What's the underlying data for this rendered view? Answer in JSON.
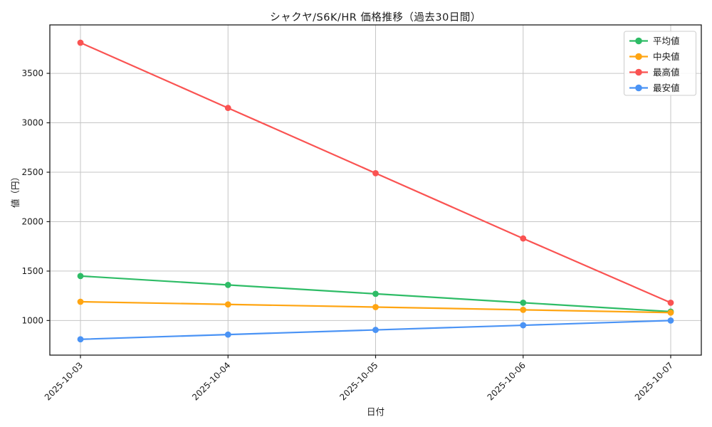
{
  "chart_data": {
    "type": "line",
    "title": "シャクヤ/S6K/HR 価格推移（過去30日間）",
    "xlabel": "日付",
    "ylabel": "値（円）",
    "x": [
      "2025-10-03",
      "2025-10-04",
      "2025-10-05",
      "2025-10-06",
      "2025-10-07"
    ],
    "series": [
      {
        "key": "average",
        "name": "平均値",
        "color": "#2ebc66",
        "values": [
          1450,
          1360,
          1270,
          1180,
          1090
        ]
      },
      {
        "key": "median",
        "name": "中央値",
        "color": "#ffa512",
        "values": [
          1190,
          1163,
          1136,
          1108,
          1080
        ]
      },
      {
        "key": "highest",
        "name": "最高値",
        "color": "#fa5352",
        "values": [
          3810,
          3150,
          2490,
          1830,
          1180
        ]
      },
      {
        "key": "lowest",
        "name": "最安値",
        "color": "#4a93f5",
        "values": [
          810,
          858,
          905,
          952,
          1000
        ]
      }
    ],
    "yticks": [
      1000,
      1500,
      2000,
      2500,
      3000,
      3500
    ],
    "ylim": [
      650,
      3990
    ],
    "grid": true,
    "legend_position": "upper right",
    "colors": {
      "grid": "#c6c6c6",
      "axis": "#1a1a1a",
      "text": "#1a1a1a",
      "legend_border": "#cccccc",
      "legend_bg": "rgba(255,255,255,0.85)"
    }
  }
}
